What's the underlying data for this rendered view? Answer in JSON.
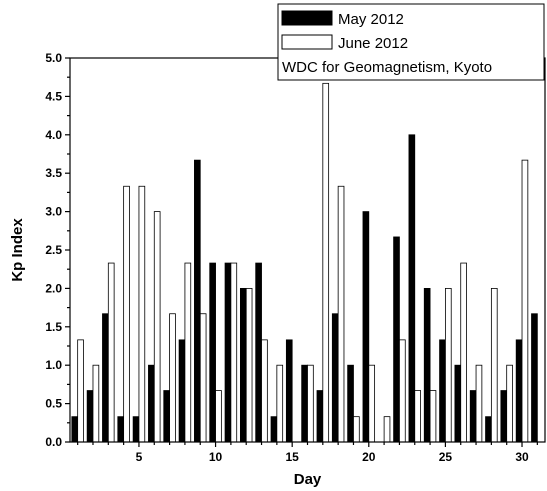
{
  "chart_data": {
    "type": "bar",
    "xlabel": "Day",
    "ylabel": "Kp Index",
    "xlim": [
      0.5,
      31.5
    ],
    "ylim": [
      0,
      5
    ],
    "xticks": [
      5,
      10,
      15,
      20,
      25,
      30
    ],
    "yticks": [
      0.0,
      0.5,
      1.0,
      1.5,
      2.0,
      2.5,
      3.0,
      3.5,
      4.0,
      4.5,
      5.0
    ],
    "ytick_labels": [
      "0.0",
      "0.5",
      "1.0",
      "1.5",
      "2.0",
      "2.5",
      "3.0",
      "3.5",
      "4.0",
      "4.5",
      "5.0"
    ],
    "grid": false,
    "legend_position": "top-right",
    "legend_note": "WDC for Geomagnetism, Kyoto",
    "days": [
      1,
      2,
      3,
      4,
      5,
      6,
      7,
      8,
      9,
      10,
      11,
      12,
      13,
      14,
      15,
      16,
      17,
      18,
      19,
      20,
      21,
      22,
      23,
      24,
      25,
      26,
      27,
      28,
      29,
      30,
      31
    ],
    "series": [
      {
        "name": "May 2012",
        "fill": "#000000",
        "values": [
          0.33,
          0.67,
          1.67,
          0.33,
          0.33,
          1.0,
          0.67,
          1.33,
          3.67,
          2.33,
          2.33,
          2.0,
          2.33,
          0.33,
          1.33,
          1.0,
          0.67,
          1.67,
          1.0,
          3.0,
          0.0,
          2.67,
          4.0,
          2.0,
          1.33,
          1.0,
          0.67,
          0.33,
          0.67,
          1.33,
          1.67
        ]
      },
      {
        "name": "June 2012",
        "fill": "#ffffff",
        "values": [
          1.33,
          1.0,
          2.33,
          3.33,
          3.33,
          3.0,
          1.67,
          2.33,
          1.67,
          0.67,
          2.33,
          2.0,
          1.33,
          1.0,
          0,
          1.0,
          4.67,
          3.33,
          0.33,
          1.0,
          0.33,
          1.33,
          0.67,
          0.67,
          2.0,
          2.33,
          1.0,
          2.0,
          1.0,
          3.67,
          null
        ]
      }
    ]
  }
}
